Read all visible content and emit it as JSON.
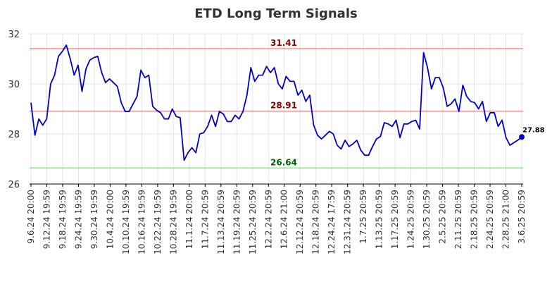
{
  "chart_data": {
    "type": "line",
    "title": "ETD Long Term Signals",
    "xlabel": "",
    "ylabel": "",
    "ylim": [
      26,
      32
    ],
    "yticks": [
      26,
      28,
      30,
      32
    ],
    "grid": true,
    "x_tick_labels": [
      "9.6.24 20:00",
      "9.12.24 19:59",
      "9.18.24 19:59",
      "9.24.24 19:59",
      "9.30.24 19:59",
      "10.4.24 20:00",
      "10.10.24 19:59",
      "10.16.24 19:59",
      "10.22.24 19:59",
      "10.28.24 19:59",
      "11.1.24 20:00",
      "11.7.24 20:59",
      "11.13.24 20:59",
      "11.19.24 20:59",
      "11.25.24 20:59",
      "12.2.24 20:59",
      "12.6.24 21:00",
      "12.12.24 20:59",
      "12.18.24 20:59",
      "12.24.24 17:59",
      "12.31.24 20:59",
      "1.7.25 20:59",
      "1.13.25 20:59",
      "1.17.25 20:59",
      "1.24.25 20:59",
      "1.30.25 20:59",
      "2.5.25 20:59",
      "2.11.25 20:59",
      "2.18.25 20:59",
      "2.24.25 20:59",
      "2.28.25 21:00",
      "3.6.25 20:59"
    ],
    "series": [
      {
        "color": "#0000cc",
        "values": [
          29.25,
          27.95,
          28.6,
          28.35,
          28.6,
          30.0,
          30.35,
          31.1,
          31.3,
          31.55,
          31.0,
          30.35,
          30.75,
          29.7,
          30.6,
          30.95,
          31.05,
          31.1,
          30.45,
          30.05,
          30.2,
          30.05,
          29.9,
          29.25,
          28.9,
          28.9,
          29.2,
          29.5,
          30.55,
          30.25,
          30.35,
          29.1,
          28.95,
          28.85,
          28.6,
          28.6,
          29.0,
          28.7,
          28.65,
          26.95,
          27.25,
          27.45,
          27.25,
          28.0,
          28.05,
          28.3,
          28.75,
          28.3,
          28.9,
          28.8,
          28.5,
          28.5,
          28.75,
          28.6,
          28.9,
          29.55,
          30.65,
          30.1,
          30.35,
          30.35,
          30.7,
          30.45,
          30.65,
          30.0,
          29.8,
          30.3,
          30.1,
          30.1,
          29.55,
          29.75,
          29.3,
          29.55,
          28.35,
          27.95,
          27.8,
          27.95,
          28.1,
          28.0,
          27.55,
          27.4,
          27.75,
          27.5,
          27.6,
          27.75,
          27.35,
          27.15,
          27.15,
          27.5,
          27.8,
          27.9,
          28.45,
          28.4,
          28.3,
          28.55,
          27.85,
          28.4,
          28.4,
          28.5,
          28.55,
          28.2,
          31.25,
          30.65,
          29.8,
          30.25,
          30.25,
          29.85,
          29.1,
          29.2,
          29.4,
          28.9,
          29.95,
          29.5,
          29.3,
          29.25,
          29.0,
          29.3,
          28.5,
          28.85,
          28.85,
          28.3,
          28.55,
          27.85,
          27.55,
          27.65,
          27.75,
          27.88
        ]
      }
    ],
    "reference_lines": [
      {
        "value": 31.41,
        "label": "31.41",
        "color": "#ff0000",
        "label_color": "#8b0000"
      },
      {
        "value": 28.91,
        "label": "28.91",
        "color": "#ff0000",
        "label_color": "#8b0000"
      },
      {
        "value": 26.64,
        "label": "26.64",
        "color": "#00cc00",
        "label_color": "#006400"
      }
    ],
    "last_value_label": "27.88"
  }
}
